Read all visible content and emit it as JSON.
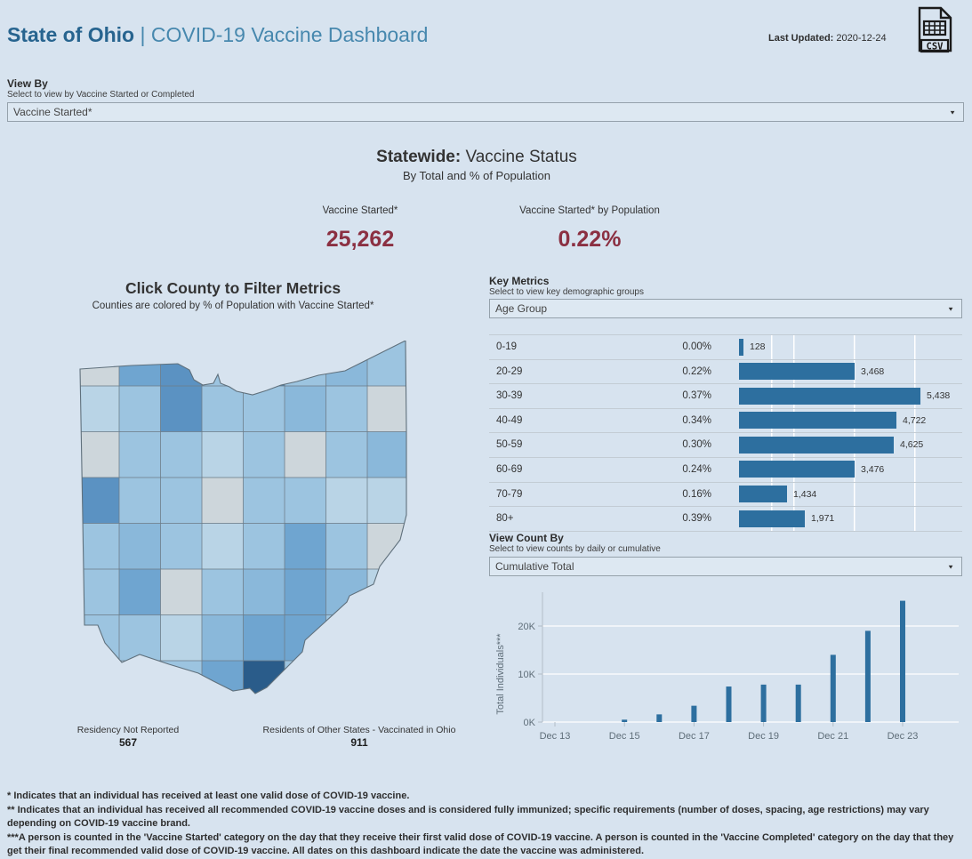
{
  "header": {
    "title_primary": "State of Ohio",
    "title_separator": " | ",
    "title_secondary": "COVID-19 Vaccine Dashboard",
    "last_updated_label": "Last Updated:",
    "last_updated_value": " 2020-12-24",
    "csv_icon_label": "CSV"
  },
  "view_by": {
    "label": "View By",
    "subtitle": "Select to view by Vaccine Started or Completed",
    "selected": "Vaccine Started*"
  },
  "statewide": {
    "heading_bold": "Statewide:",
    "heading_rest": " Vaccine Status",
    "subheading": "By Total and % of Population",
    "metrics": [
      {
        "label": "Vaccine Started*",
        "value": "25,262"
      },
      {
        "label": "Vaccine Started* by Population",
        "value": "0.22%"
      }
    ]
  },
  "map": {
    "title": "Click County to Filter Metrics",
    "subtitle": "Counties are colored by % of Population with Vaccine Started*",
    "captions": [
      {
        "label": "Residency Not Reported",
        "value": "567"
      },
      {
        "label": "Residents of Other States - Vaccinated in Ohio",
        "value": "911"
      }
    ],
    "palette": [
      "#cdd6db",
      "#b9d4e6",
      "#9cc4e0",
      "#8ab8da",
      "#6fa5d0",
      "#5b92c2",
      "#417bab",
      "#2a5c8a"
    ],
    "grid": [
      [
        0,
        4,
        5,
        2,
        6,
        2,
        3,
        2
      ],
      [
        1,
        2,
        5,
        2,
        2,
        3,
        2,
        0
      ],
      [
        0,
        2,
        2,
        1,
        2,
        0,
        2,
        3
      ],
      [
        5,
        2,
        2,
        0,
        2,
        2,
        1,
        1
      ],
      [
        2,
        3,
        2,
        1,
        2,
        4,
        2,
        0
      ],
      [
        2,
        4,
        0,
        2,
        3,
        4,
        3,
        1
      ],
      [
        2,
        2,
        1,
        3,
        4,
        4,
        2,
        2
      ],
      [
        1,
        1,
        2,
        4,
        7,
        2,
        2,
        2
      ]
    ],
    "border_color": "#6e7e8a"
  },
  "key_metrics": {
    "label": "Key Metrics",
    "subtitle": "Select to view key demographic groups",
    "selected": "Age Group"
  },
  "view_count_by": {
    "label": "View Count By",
    "subtitle": "Select to view counts by daily or cumulative",
    "selected": "Cumulative Total"
  },
  "chart_data": [
    {
      "type": "bar",
      "orientation": "horizontal",
      "panel": "Key Metrics by Age Group",
      "categories": [
        "0-19",
        "20-29",
        "30-39",
        "40-49",
        "50-59",
        "60-69",
        "70-79",
        "80+"
      ],
      "percent_labels": [
        "0.00%",
        "0.22%",
        "0.37%",
        "0.34%",
        "0.30%",
        "0.24%",
        "0.16%",
        "0.39%"
      ],
      "values": [
        128,
        3468,
        5438,
        4722,
        4625,
        3476,
        1434,
        1971
      ],
      "value_labels": [
        "128",
        "3,468",
        "5,438",
        "4,722",
        "4,625",
        "3,476",
        "1,434",
        "1,971"
      ],
      "xlim": [
        0,
        6100
      ],
      "grid": "vertical-white-lines",
      "bar_color": "#2d6f9f"
    },
    {
      "type": "bar",
      "panel": "Vaccine Started over time",
      "title": "Cumulative Total",
      "x": [
        "Dec 13",
        "Dec 14",
        "Dec 15",
        "Dec 16",
        "Dec 17",
        "Dec 18",
        "Dec 19",
        "Dec 20",
        "Dec 21",
        "Dec 22",
        "Dec 23"
      ],
      "values": [
        0,
        0,
        500,
        1600,
        3400,
        7400,
        7800,
        7800,
        14000,
        19000,
        25262
      ],
      "x_tick_labels": [
        "Dec 13",
        "Dec 15",
        "Dec 17",
        "Dec 19",
        "Dec 21",
        "Dec 23"
      ],
      "y_tick_labels": [
        "0K",
        "10K",
        "20K"
      ],
      "y_tick_values": [
        0,
        10000,
        20000
      ],
      "ylabel": "Total Individuals***",
      "ylim": [
        0,
        26000
      ],
      "bar_color": "#2d6f9f"
    }
  ],
  "footnotes": [
    "* Indicates that an individual has received at least one valid dose of COVID-19 vaccine.",
    "** Indicates that an individual has received all recommended COVID-19 vaccine doses and is considered fully immunized; specific requirements (number of doses, spacing, age restrictions) may vary depending on COVID-19 vaccine brand.",
    "***A person is counted in the 'Vaccine Started' category on the day that they receive their first valid dose of COVID-19 vaccine.  A person is counted in the 'Vaccine Completed' category on the day that they get their final recommended valid dose of COVID-19 vaccine. All dates on this dashboard indicate the date the vaccine was administered."
  ],
  "colors": {
    "page_background": "#d7e3ef",
    "title_primary": "#27648f",
    "title_secondary": "#4788ae",
    "metric_value": "#8b3042",
    "bar_blue": "#2d6f9f",
    "choropleth_darkest": "#2a5c8a",
    "choropleth_lightest": "#cdd6db"
  }
}
